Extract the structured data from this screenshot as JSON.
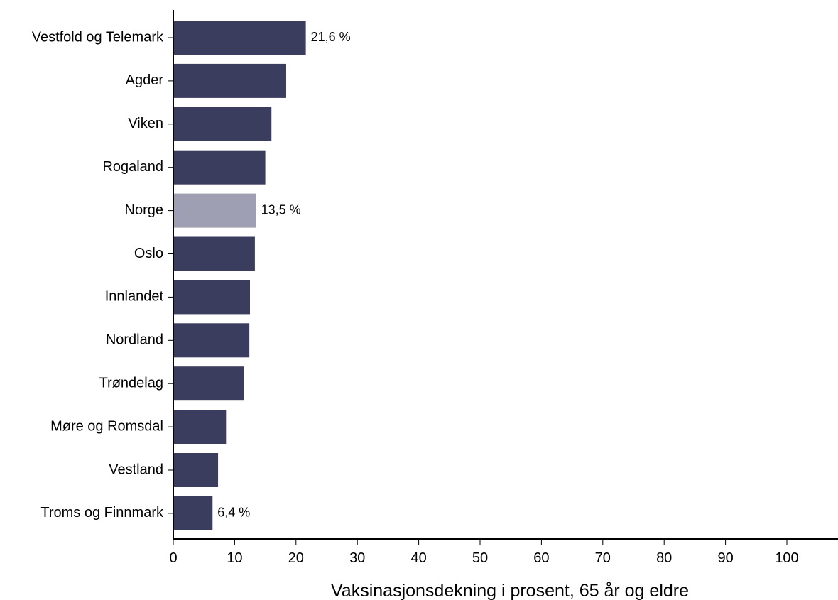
{
  "colors": {
    "bar": "#3b3d5e",
    "highlight_bar": "#9e9fb3",
    "axis": "#000000"
  },
  "chart_data": {
    "type": "bar",
    "orientation": "horizontal",
    "categories": [
      "Vestfold og Telemark",
      "Agder",
      "Viken",
      "Rogaland",
      "Norge",
      "Oslo",
      "Innlandet",
      "Nordland",
      "Trøndelag",
      "Møre og Romsdal",
      "Vestland",
      "Troms og Finnmark"
    ],
    "values": [
      21.6,
      18.4,
      16.0,
      15.0,
      13.5,
      13.3,
      12.5,
      12.4,
      11.5,
      8.6,
      7.3,
      6.4
    ],
    "highlight": "Norge",
    "data_labels": [
      {
        "category": "Vestfold og Telemark",
        "text": "21,6 %"
      },
      {
        "category": "Norge",
        "text": "13,5 %"
      },
      {
        "category": "Troms og Finnmark",
        "text": "6,4 %"
      }
    ],
    "title": "",
    "xlabel": "Vaksinasjonsdekning i prosent, 65 år og eldre",
    "ylabel": "",
    "xlim": [
      0,
      108
    ],
    "xticks": [
      0,
      10,
      20,
      30,
      40,
      50,
      60,
      70,
      80,
      90,
      100
    ],
    "xtick_labels": [
      "0",
      "10",
      "20",
      "30",
      "40",
      "50",
      "60",
      "70",
      "80",
      "90",
      "100"
    ],
    "grid": false,
    "legend": "none"
  }
}
